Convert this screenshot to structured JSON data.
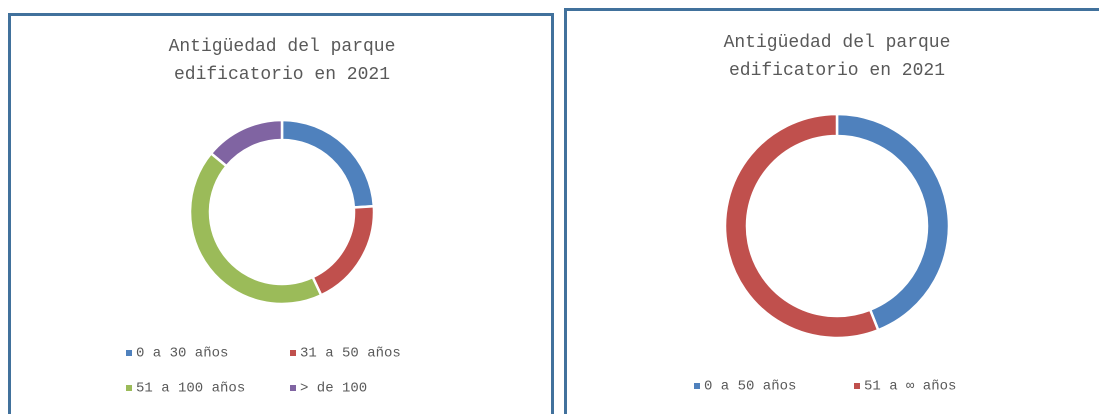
{
  "chart_data": [
    {
      "type": "pie",
      "title": "Antigüedad del parque edificatorio en 2021",
      "categories": [
        "0 a 30 años",
        "31 a 50 años",
        "51 a 100 años",
        "> de 100"
      ],
      "values": [
        24,
        19,
        43,
        14
      ],
      "colors": [
        "#4f81bd",
        "#c0504d",
        "#9bbb59",
        "#8064a2"
      ],
      "legend": "bottom"
    },
    {
      "type": "pie",
      "title": "Antigüedad del parque edificatorio en 2021",
      "categories": [
        "0 a 50 años",
        "51 a ∞ años"
      ],
      "values": [
        44,
        56
      ],
      "colors": [
        "#4f81bd",
        "#c0504d"
      ],
      "legend": "bottom"
    }
  ]
}
